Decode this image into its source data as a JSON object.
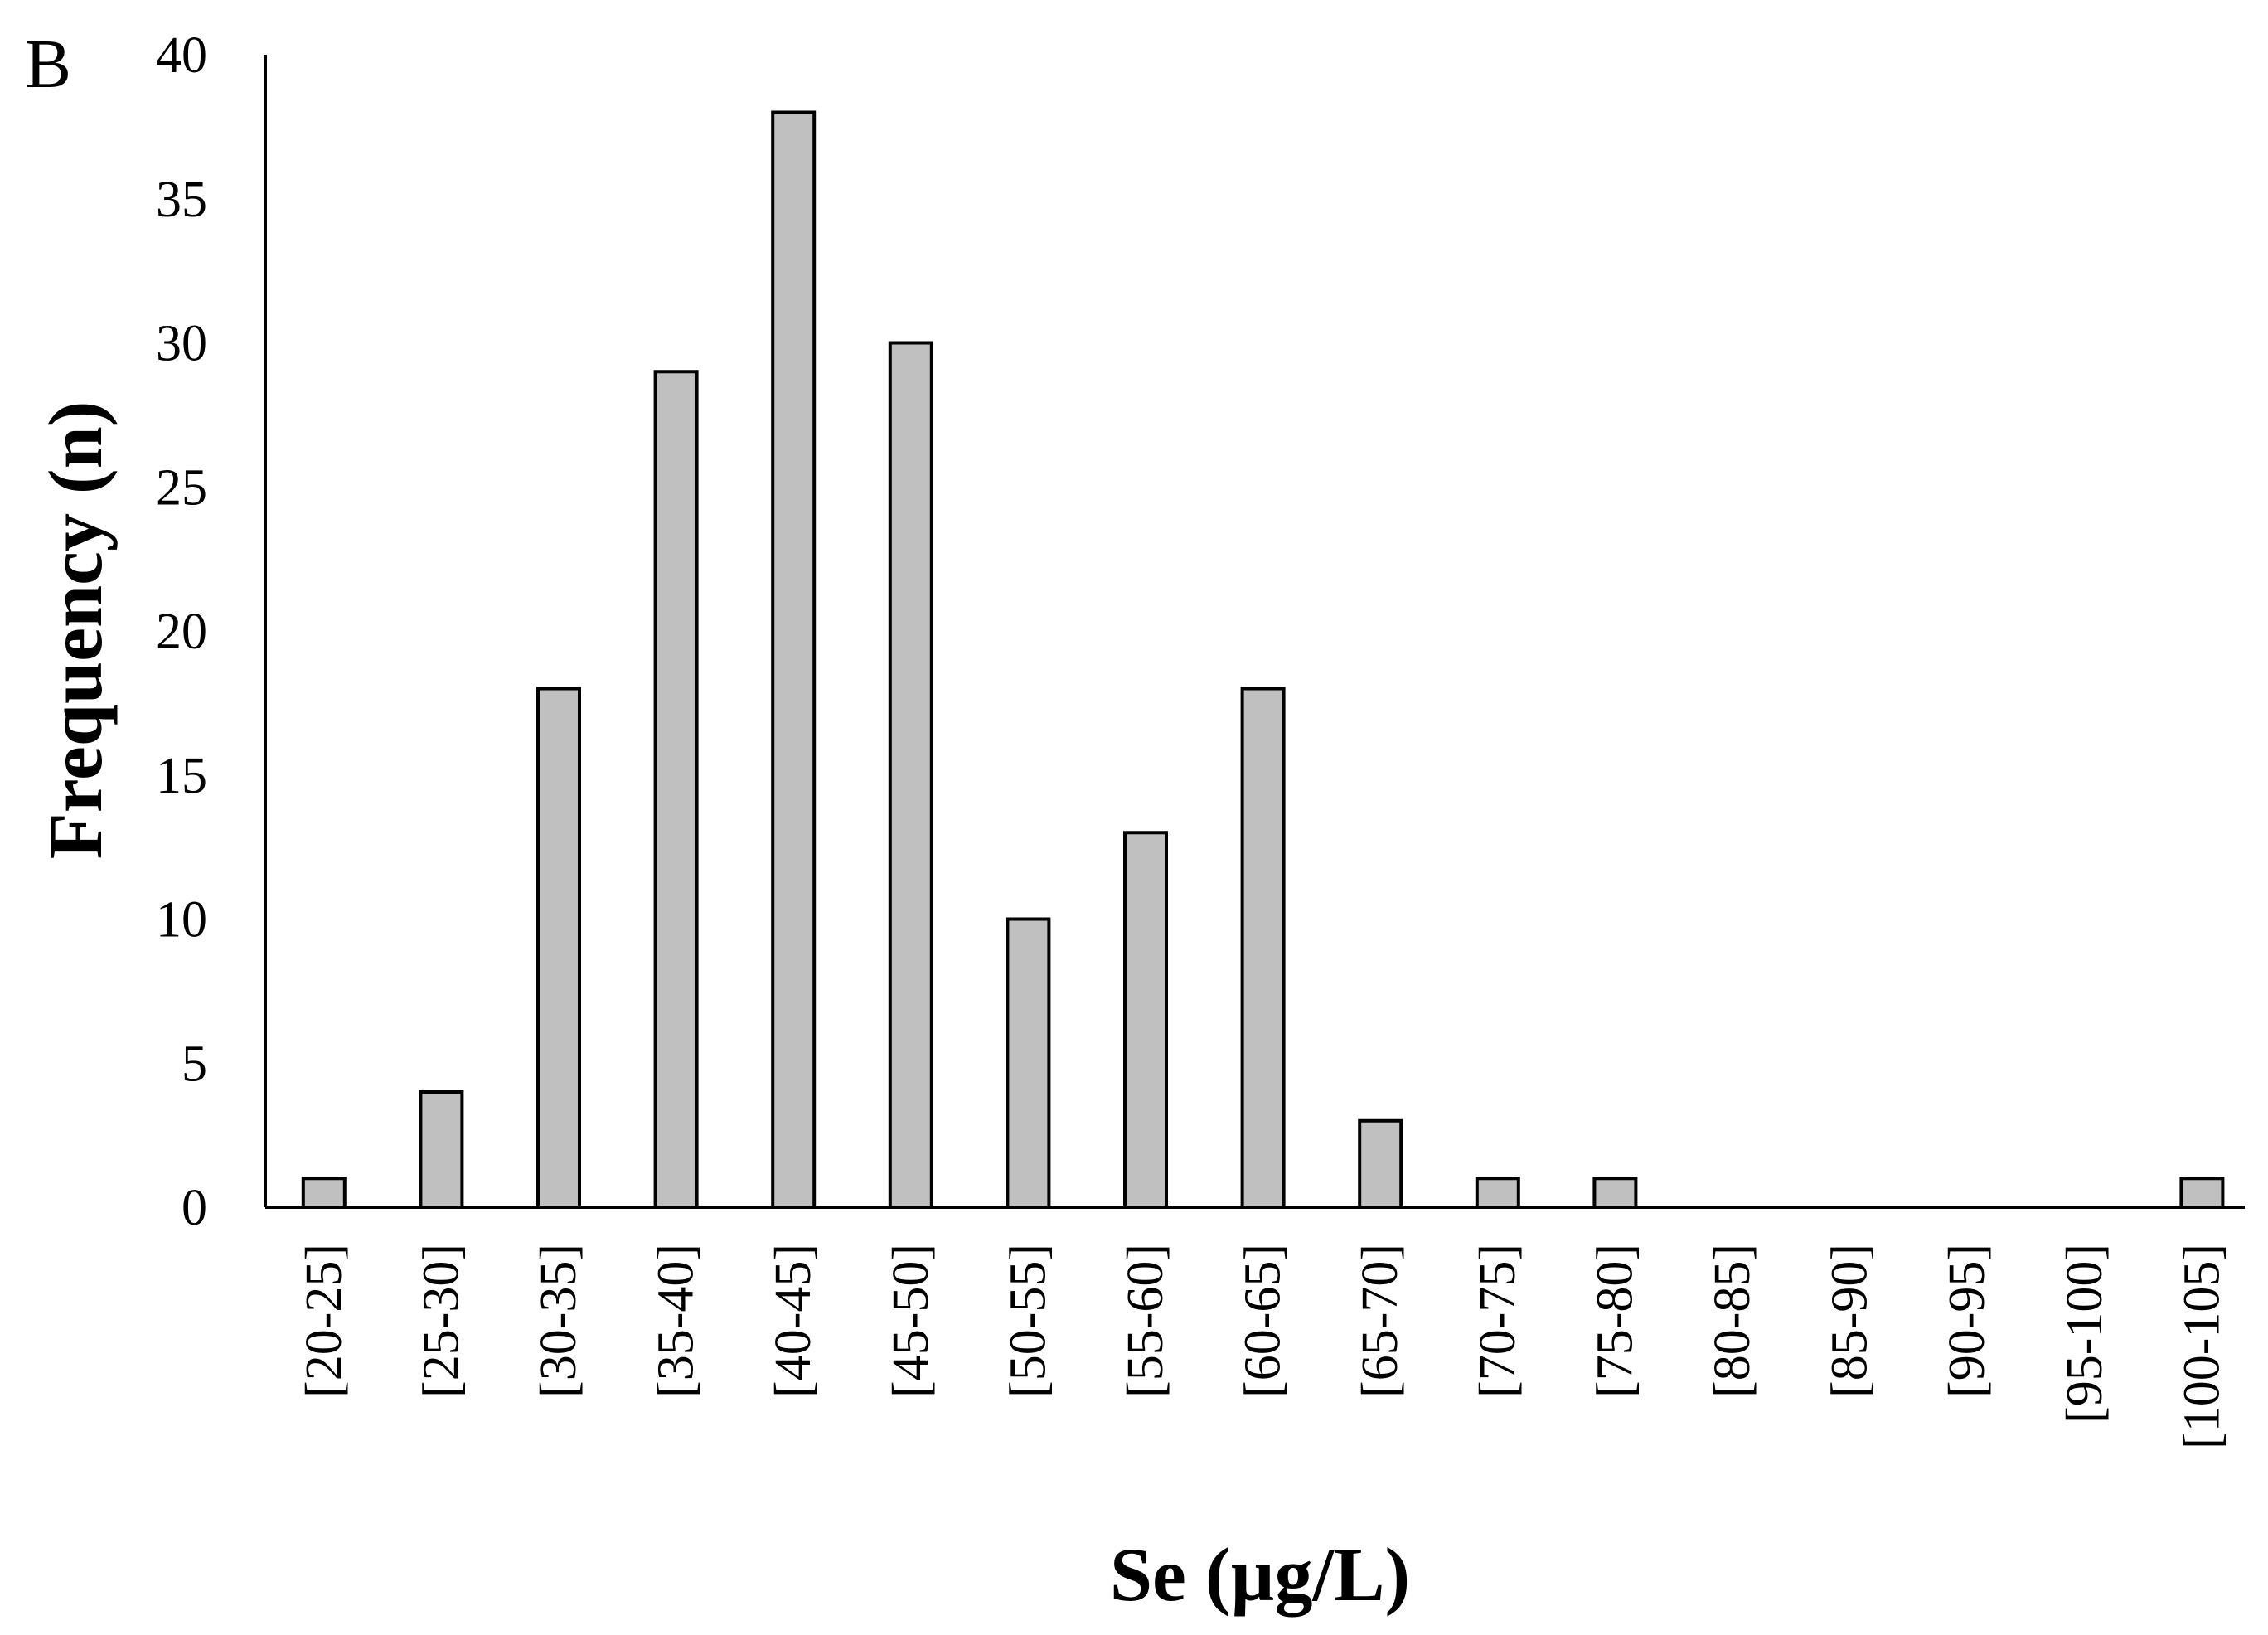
{
  "chart_data": {
    "type": "bar",
    "panel_label": "B",
    "xlabel": "Se (µg/L)",
    "ylabel": "Frequency (n)",
    "categories": [
      "[20-25]",
      "[25-30]",
      "[30-35]",
      "[35-40]",
      "[40-45]",
      "[45-50]",
      "[50-55]",
      "[55-60]",
      "[60-65]",
      "[65-70]",
      "[70-75]",
      "[75-80]",
      "[80-85]",
      "[85-90]",
      "[90-95]",
      "[95-100]",
      "[100-105]"
    ],
    "values": [
      1,
      4,
      18,
      29,
      38,
      30,
      10,
      13,
      18,
      3,
      1,
      1,
      0,
      0,
      0,
      0,
      1
    ],
    "ylim": [
      0,
      40
    ],
    "yticks": [
      0,
      5,
      10,
      15,
      20,
      25,
      30,
      35,
      40
    ],
    "grid": false,
    "legend": "none",
    "colors": {
      "bar_fill": "#c0c0c0",
      "bar_stroke": "#000000",
      "axis": "#000000"
    }
  }
}
